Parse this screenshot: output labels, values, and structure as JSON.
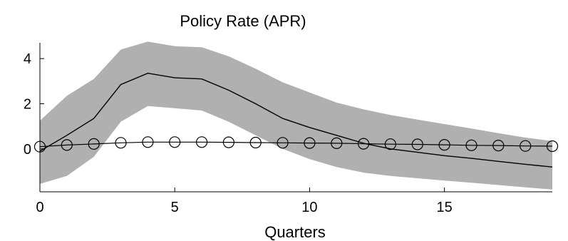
{
  "chart_data": {
    "type": "line",
    "title": "Policy Rate (APR)",
    "xlabel": "Quarters",
    "ylabel": "",
    "xlim": [
      0,
      19
    ],
    "ylim": [
      -1.9,
      4.7
    ],
    "xticks": [
      0,
      5,
      10,
      15
    ],
    "yticks": [
      0,
      2,
      4
    ],
    "x": [
      0,
      1,
      2,
      3,
      4,
      5,
      6,
      7,
      8,
      9,
      10,
      11,
      12,
      13,
      14,
      15,
      16,
      17,
      18,
      19
    ],
    "series": [
      {
        "style": "solid",
        "values": [
          -0.1,
          0.6,
          1.35,
          2.85,
          3.35,
          3.15,
          3.1,
          2.6,
          2.0,
          1.35,
          0.95,
          0.6,
          0.25,
          0.0,
          -0.15,
          -0.3,
          -0.42,
          -0.55,
          -0.68,
          -0.8
        ]
      },
      {
        "style": "circle-markers",
        "values": [
          0.1,
          0.17,
          0.22,
          0.27,
          0.3,
          0.3,
          0.3,
          0.29,
          0.28,
          0.27,
          0.26,
          0.25,
          0.23,
          0.21,
          0.2,
          0.18,
          0.16,
          0.15,
          0.13,
          0.12
        ]
      }
    ],
    "band": {
      "lower": [
        -1.55,
        -1.2,
        -0.35,
        1.2,
        1.9,
        1.8,
        1.7,
        1.2,
        0.6,
        0.0,
        -0.45,
        -0.8,
        -1.05,
        -1.2,
        -1.3,
        -1.4,
        -1.5,
        -1.6,
        -1.7,
        -1.8
      ],
      "upper": [
        1.25,
        2.35,
        3.1,
        4.4,
        4.75,
        4.55,
        4.5,
        4.1,
        3.55,
        2.95,
        2.5,
        2.05,
        1.75,
        1.5,
        1.3,
        1.1,
        0.9,
        0.7,
        0.5,
        0.35
      ]
    },
    "grid": false,
    "legend": "none"
  }
}
